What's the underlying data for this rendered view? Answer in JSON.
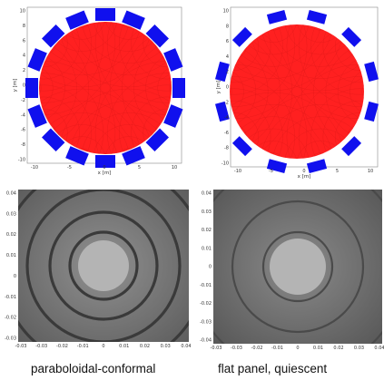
{
  "panels": {
    "top_left": {
      "x_ticks": [
        "-10",
        "-5",
        "0",
        "5",
        "10"
      ],
      "y_ticks": [
        "10",
        "8",
        "6",
        "4",
        "2",
        "0",
        "-2",
        "-4",
        "-6",
        "-8",
        "-10"
      ],
      "xlabel": "x [m]",
      "ylabel": "y [m]",
      "disc_color": "#ff2020",
      "panel_color": "#1010ee"
    },
    "top_right": {
      "x_ticks": [
        "-10",
        "-5",
        "0",
        "5",
        "10"
      ],
      "y_ticks": [
        "10",
        "8",
        "6",
        "4",
        "2",
        "0",
        "-2",
        "-4",
        "-6",
        "-8",
        "-10"
      ],
      "xlabel": "x [m]",
      "ylabel": "y [m]",
      "disc_color": "#ff2020",
      "panel_color": "#1010ee"
    },
    "bottom_left": {
      "x_ticks": [
        "-0.03",
        "-0.03",
        "-0.02",
        "-0.01",
        "0",
        "0.01",
        "0.02",
        "0.03",
        "0.04"
      ],
      "y_ticks": [
        "0.04",
        "0.03",
        "0.02",
        "0.01",
        "0",
        "-0.01",
        "-0.02",
        "-0.03"
      ],
      "caption": "paraboloidal-conformal"
    },
    "bottom_right": {
      "x_ticks": [
        "-0.03",
        "-0.03",
        "-0.02",
        "-0.01",
        "0",
        "0.01",
        "0.02",
        "0.03",
        "0.04"
      ],
      "y_ticks": [
        "0.04",
        "0.03",
        "0.02",
        "0.01",
        "0",
        "-0.01",
        "-0.02",
        "-0.03",
        "-0.04"
      ],
      "caption": "flat panel, quiescent"
    }
  }
}
